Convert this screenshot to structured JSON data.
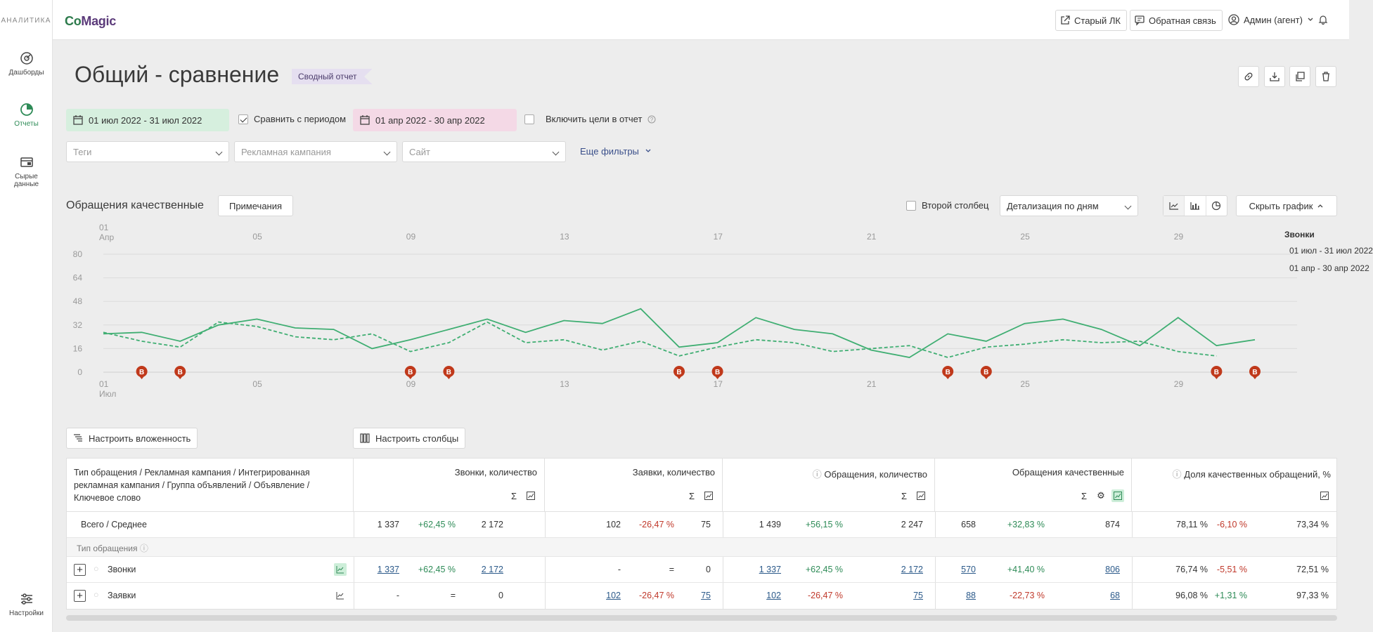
{
  "sidebar": {
    "brand": "АНАЛИТИКА",
    "items": [
      {
        "label": "Дашборды",
        "icon": "dashboard-icon"
      },
      {
        "label": "Отчеты",
        "icon": "reports-icon",
        "active": true
      },
      {
        "label": "Сырые данные",
        "icon": "raw-data-icon"
      },
      {
        "label": "Настройки",
        "icon": "settings-icon"
      }
    ]
  },
  "topbar": {
    "logo_co": "Co",
    "logo_magic": "Magic",
    "old_lk": "Старый ЛК",
    "feedback": "Обратная связь",
    "user": "Админ (агент)"
  },
  "header": {
    "title": "Общий - сравнение",
    "tag": "Сводный отчет"
  },
  "filters": {
    "period_main": "01 июл 2022 - 31 июл 2022",
    "compare_label": "Сравнить с периодом",
    "period_compare": "01 апр 2022 - 30 апр 2022",
    "goals_label": "Включить цели в отчет",
    "tags_placeholder": "Теги",
    "campaign_placeholder": "Рекламная кампания",
    "site_placeholder": "Сайт",
    "more": "Еще фильтры"
  },
  "chart_header": {
    "title": "Обращения качественные",
    "notes": "Примечания",
    "second_column": "Второй столбец",
    "detail": "Детализация по дням",
    "hide": "Скрыть график"
  },
  "chart_data": {
    "type": "line",
    "title": "Обращения качественные",
    "y_ticks": [
      0,
      16,
      32,
      48,
      64,
      80
    ],
    "ylim": [
      0,
      80
    ],
    "x_ticks_top": [
      "01",
      "05",
      "09",
      "13",
      "17",
      "21",
      "25",
      "29"
    ],
    "x_top_month": "Апр",
    "x_ticks_bottom": [
      "01",
      "05",
      "09",
      "13",
      "17",
      "21",
      "25",
      "29"
    ],
    "x_bottom_month": "Июл",
    "marker_label": "В",
    "marker_days": [
      2,
      3,
      9,
      10,
      16,
      17,
      23,
      24,
      30,
      31
    ],
    "legend_title": "Звонки",
    "series": [
      {
        "name": "01 июл - 31 июл 2022",
        "style": "solid",
        "color": "#3fae72",
        "values": [
          26,
          27,
          21,
          32,
          36,
          30,
          29,
          16,
          22,
          29,
          36,
          27,
          35,
          33,
          43,
          17,
          20,
          37,
          29,
          26,
          15,
          10,
          26,
          21,
          33,
          36,
          29,
          18,
          37,
          18,
          22
        ]
      },
      {
        "name": "01 апр - 30 апр 2022",
        "style": "dashed",
        "color": "#3fae72",
        "values": [
          27,
          21,
          17,
          34,
          31,
          24,
          22,
          26,
          14,
          20,
          34,
          20,
          22,
          15,
          21,
          11,
          17,
          22,
          20,
          14,
          16,
          18,
          10,
          17,
          19,
          22,
          20,
          21,
          14,
          11
        ]
      }
    ]
  },
  "table_controls": {
    "nesting": "Настроить вложенность",
    "columns": "Настроить столбцы"
  },
  "table": {
    "dim_header": "Тип обращения / Рекламная кампания / Интегрированная рекламная кампания / Группа объявлений / Объявление / Ключевое слово",
    "col_headers": [
      "Звонки, количество",
      "Заявки, количество",
      "Обращения, количество",
      "Обращения качественные",
      "Доля качественных обращений, %"
    ],
    "total": {
      "label": "Всего / Среднее",
      "vals": [
        "1 337",
        "+62,45 %",
        "2 172",
        "102",
        "-26,47 %",
        "75",
        "1 439",
        "+56,15 %",
        "2 247",
        "658",
        "+32,83 %",
        "874",
        "78,11 %",
        "-6,10 %",
        "73,34 %"
      ]
    },
    "group_label": "Тип обращения",
    "rows": [
      {
        "label": "Звонки",
        "vals": [
          "1 337",
          "+62,45 %",
          "2 172",
          "-",
          "=",
          "0",
          "1 337",
          "+62,45 %",
          "2 172",
          "570",
          "+41,40 %",
          "806",
          "76,74 %",
          "-5,51 %",
          "72,51 %"
        ]
      },
      {
        "label": "Заявки",
        "vals": [
          "-",
          "=",
          "0",
          "102",
          "-26,47 %",
          "75",
          "102",
          "-26,47 %",
          "75",
          "88",
          "-22,73 %",
          "68",
          "96,08 %",
          "+1,31 %",
          "97,33 %"
        ]
      }
    ]
  }
}
